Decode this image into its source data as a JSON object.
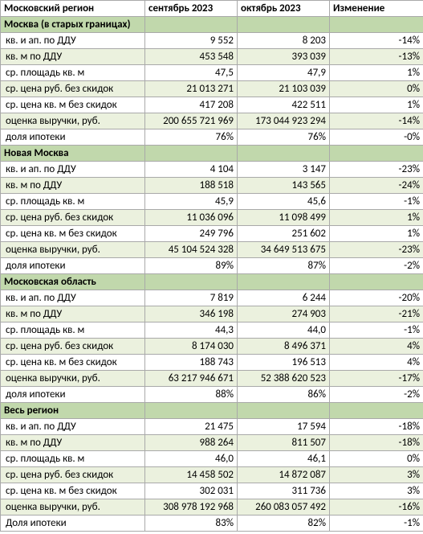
{
  "colors": {
    "section_bg": "#c1d8ac",
    "even_bg": "#ebf1de",
    "odd_bg": "#ffffff",
    "border": "#a9a9a9"
  },
  "header": {
    "region": "Московский регион",
    "sep": "сентябрь 2023",
    "oct": "октябрь 2023",
    "chg": "Изменение"
  },
  "sections": [
    {
      "title": "Москва (в старых границах)",
      "rows": [
        {
          "label": "кв. и ап. по ДДУ",
          "sep": "9 552",
          "oct": "8 203",
          "chg": "-14%"
        },
        {
          "label": "кв. м по ДДУ",
          "sep": "453 548",
          "oct": "393 039",
          "chg": "-13%"
        },
        {
          "label": "ср. площадь кв. м",
          "sep": "47,5",
          "oct": "47,9",
          "chg": "1%"
        },
        {
          "label": "ср. цена руб. без скидок",
          "sep": "21 013 271",
          "oct": "21 103 039",
          "chg": "0%"
        },
        {
          "label": "ср. цена кв. м без скидок",
          "sep": "417 208",
          "oct": "422 511",
          "chg": "1%"
        },
        {
          "label": "оценка выручки, руб.",
          "sep": "200 655 721 969",
          "oct": "173 044 923 294",
          "chg": "-14%"
        },
        {
          "label": "доля ипотеки",
          "sep": "76%",
          "oct": "76%",
          "chg": "-0%"
        }
      ]
    },
    {
      "title": "Новая Москва",
      "rows": [
        {
          "label": "кв. и ап. по ДДУ",
          "sep": "4 104",
          "oct": "3 147",
          "chg": "-23%"
        },
        {
          "label": "кв. м по ДДУ",
          "sep": "188 518",
          "oct": "143 565",
          "chg": "-24%"
        },
        {
          "label": "ср. площадь кв. м",
          "sep": "45,9",
          "oct": "45,6",
          "chg": "-1%"
        },
        {
          "label": "ср. цена руб. без скидок",
          "sep": "11 036 096",
          "oct": "11 098 499",
          "chg": "1%"
        },
        {
          "label": "ср. цена кв. м без скидок",
          "sep": "249 796",
          "oct": "251 602",
          "chg": "1%"
        },
        {
          "label": "оценка выручки, руб.",
          "sep": "45 104 524 328",
          "oct": "34 649 513 675",
          "chg": "-23%"
        },
        {
          "label": "доля ипотеки",
          "sep": "89%",
          "oct": "87%",
          "chg": "-2%"
        }
      ]
    },
    {
      "title": "Московская область",
      "rows": [
        {
          "label": "кв. и ап. по ДДУ",
          "sep": "7 819",
          "oct": "6 244",
          "chg": "-20%"
        },
        {
          "label": "кв. м по ДДУ",
          "sep": "346 198",
          "oct": "274 903",
          "chg": "-21%"
        },
        {
          "label": "ср. площадь кв. м",
          "sep": "44,3",
          "oct": "44,0",
          "chg": "-1%"
        },
        {
          "label": "ср. цена руб. без скидок",
          "sep": "8 174 030",
          "oct": "8 496 371",
          "chg": "4%"
        },
        {
          "label": "ср. цена кв. м без скидок",
          "sep": "188 743",
          "oct": "196 513",
          "chg": "4%"
        },
        {
          "label": "оценка выручки, руб.",
          "sep": "63 217 946 671",
          "oct": "52 388 620 523",
          "chg": "-17%"
        },
        {
          "label": "доля ипотеки",
          "sep": "88%",
          "oct": "86%",
          "chg": "-2%"
        }
      ]
    },
    {
      "title": "Весь регион",
      "rows": [
        {
          "label": "кв. и ап. по ДДУ",
          "sep": "21 475",
          "oct": "17 594",
          "chg": "-18%"
        },
        {
          "label": "кв. м по ДДУ",
          "sep": "988 264",
          "oct": "811 507",
          "chg": "-18%"
        },
        {
          "label": "ср. площадь кв. м",
          "sep": "46,0",
          "oct": "46,1",
          "chg": "0%"
        },
        {
          "label": "ср. цена руб. без скидок",
          "sep": "14 458 502",
          "oct": "14 872 087",
          "chg": "3%"
        },
        {
          "label": "ср. цена кв. м без скидок",
          "sep": "302 031",
          "oct": "311 736",
          "chg": "3%"
        },
        {
          "label": "оценка выручки, руб.",
          "sep": "308 978 192 968",
          "oct": "260 083 057 492",
          "chg": "-16%"
        },
        {
          "label": "Доля ипотеки",
          "sep": "83%",
          "oct": "82%",
          "chg": "-1%"
        }
      ]
    }
  ]
}
